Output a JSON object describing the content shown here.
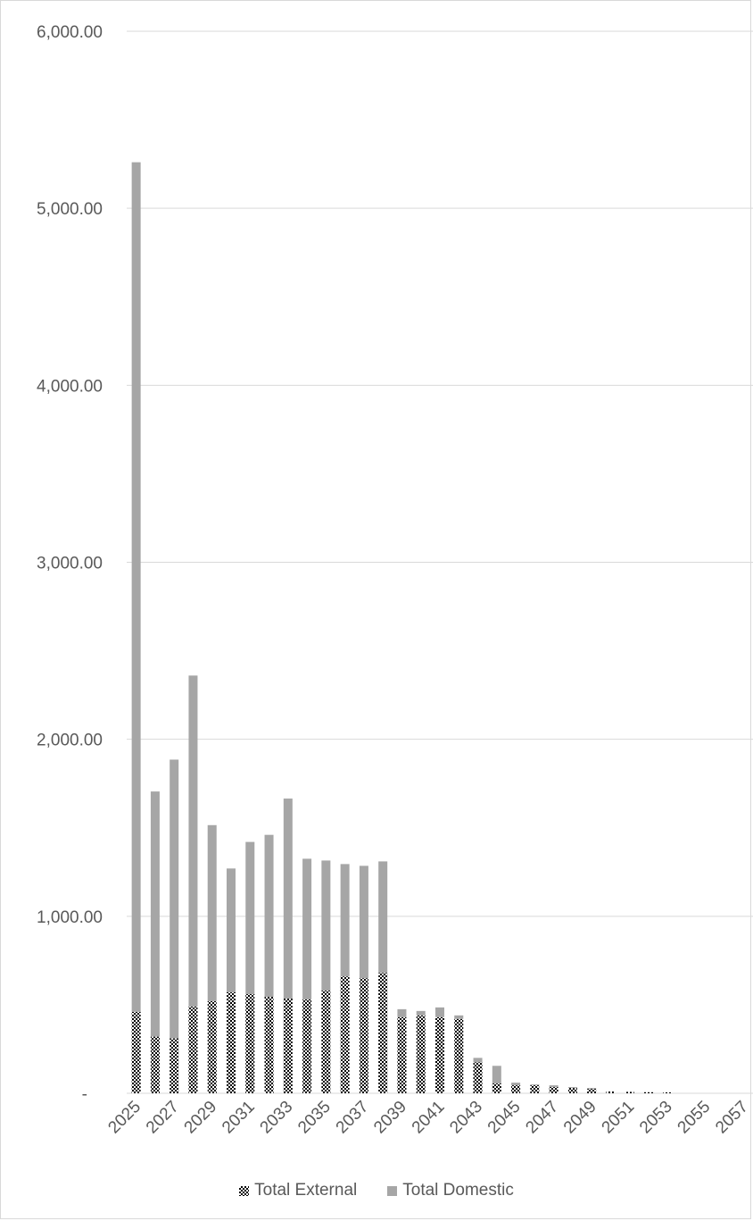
{
  "chart_data": {
    "type": "bar",
    "stacked": true,
    "title": "",
    "xlabel": "",
    "ylabel": "",
    "ylim": [
      0,
      6000
    ],
    "y_ticks": [
      0,
      1000,
      2000,
      3000,
      4000,
      5000,
      6000
    ],
    "y_tick_labels": [
      "-",
      "1,000.00",
      "2,000.00",
      "3,000.00",
      "4,000.00",
      "5,000.00",
      "6,000.00"
    ],
    "grid": true,
    "legend_position": "bottom",
    "categories": [
      "2025",
      "2026",
      "2027",
      "2028",
      "2029",
      "2030",
      "2031",
      "2032",
      "2033",
      "2034",
      "2035",
      "2036",
      "2037",
      "2038",
      "2039",
      "2040",
      "2041",
      "2042",
      "2043",
      "2044",
      "2045",
      "2046",
      "2047",
      "2048",
      "2049",
      "2050",
      "2051",
      "2052",
      "2053",
      "2054",
      "2055",
      "2056",
      "2057"
    ],
    "x_tick_labels": [
      "2025",
      "2027",
      "2029",
      "2031",
      "2033",
      "2035",
      "2037",
      "2039",
      "2041",
      "2043",
      "2045",
      "2047",
      "2049",
      "2051",
      "2053",
      "2055",
      "2057"
    ],
    "series": [
      {
        "name": "Total External",
        "color": "#000000",
        "pattern": "checker",
        "values": [
          460,
          320,
          310,
          490,
          520,
          570,
          560,
          545,
          535,
          530,
          580,
          660,
          650,
          680,
          430,
          440,
          430,
          420,
          175,
          55,
          45,
          45,
          35,
          30,
          25,
          10,
          8,
          6,
          5,
          0,
          0,
          0,
          0
        ]
      },
      {
        "name": "Total Domestic",
        "color": "#a6a6a6",
        "values": [
          4800,
          1385,
          1575,
          1870,
          995,
          700,
          860,
          915,
          1130,
          795,
          735,
          635,
          635,
          630,
          45,
          25,
          55,
          20,
          25,
          100,
          15,
          5,
          10,
          5,
          5,
          0,
          0,
          0,
          0,
          0,
          0,
          0,
          0
        ]
      }
    ]
  }
}
